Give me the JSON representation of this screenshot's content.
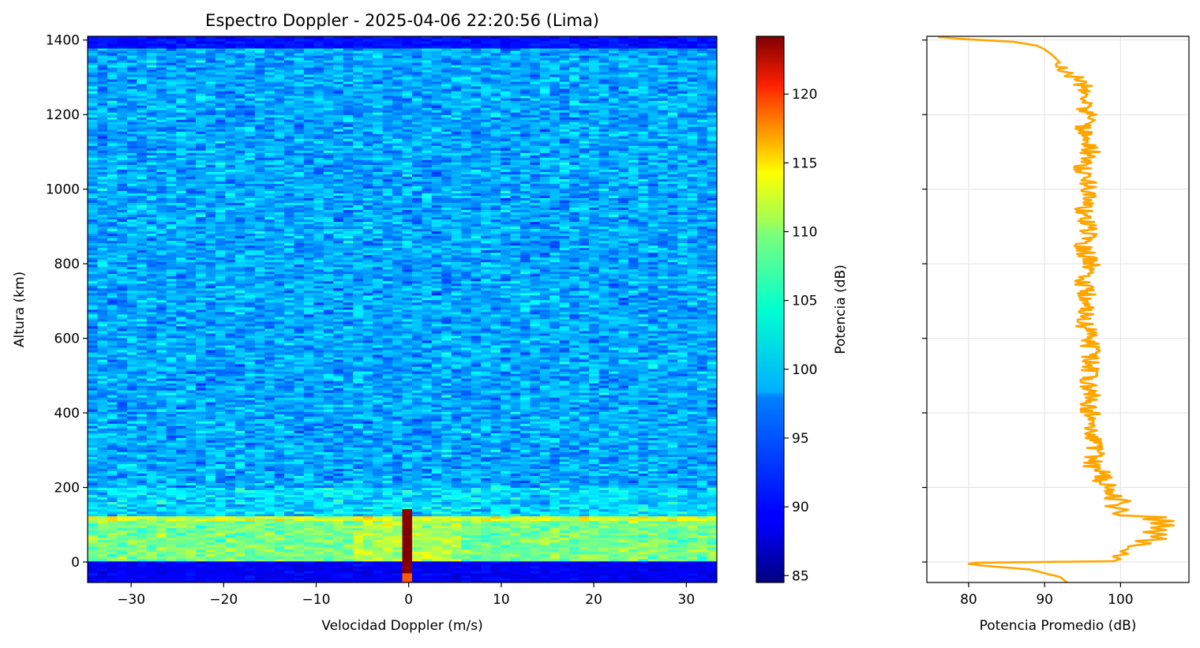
{
  "chart_data": [
    {
      "type": "heatmap",
      "title": "Espectro Doppler - 2025-04-06 22:20:56 (Lima)",
      "xlabel": "Velocidad Doppler (m/s)",
      "ylabel": "Altura (km)",
      "xlim": [
        -34.7,
        33.3
      ],
      "ylim": [
        -55,
        1410
      ],
      "xticks": [
        -30,
        -20,
        -10,
        0,
        10,
        20,
        30
      ],
      "yticks": [
        0,
        200,
        400,
        600,
        800,
        1000,
        1200,
        1400
      ],
      "colormap": "jet",
      "colorbar": {
        "label": "Potencia (dB)",
        "range": [
          84.5,
          124.2
        ],
        "ticks": [
          85,
          90,
          95,
          100,
          105,
          110,
          115,
          120
        ]
      },
      "features": {
        "background_level_db": 96,
        "enhanced_band": {
          "height_range_km": [
            0,
            125
          ],
          "level_db": 104
        },
        "lower_band_top": {
          "height_range_km": [
            110,
            125
          ],
          "level_db": 108
        },
        "weak_bottom_layer": {
          "height_range_km": [
            -55,
            0
          ],
          "level_db": 89
        },
        "weak_top_rows": {
          "height_range_km": [
            1380,
            1410
          ],
          "level_db": 90
        },
        "zero_velocity_spike": {
          "velocity_ms": 0,
          "height_range_km": [
            -55,
            145
          ],
          "level_db": 124
        }
      }
    },
    {
      "type": "line",
      "xlabel": "Potencia Promedio (dB)",
      "ylabel": "",
      "xlim": [
        74.5,
        109
      ],
      "ylim": [
        -55,
        1410
      ],
      "xticks": [
        80,
        90,
        100
      ],
      "yticks": [
        0,
        200,
        400,
        600,
        800,
        1000,
        1200,
        1400
      ],
      "grid": true,
      "color": "#ffa500",
      "series": [
        {
          "heights": [
            -55,
            -40,
            -20,
            -10,
            -5,
            -2,
            2,
            8,
            15,
            22,
            28,
            35,
            42,
            50,
            56,
            62,
            68,
            74,
            80,
            86,
            92,
            98,
            104,
            110,
            115,
            120,
            125,
            130,
            140,
            150,
            160,
            170,
            180,
            190,
            200,
            215,
            235,
            260,
            300,
            350,
            400,
            450,
            500,
            550,
            600,
            650,
            700,
            750,
            800,
            850,
            900,
            950,
            1000,
            1050,
            1100,
            1150,
            1200,
            1230,
            1260,
            1280,
            1300,
            1320,
            1340,
            1360,
            1375,
            1385,
            1395,
            1402,
            1408
          ],
          "power": [
            93,
            92,
            88,
            82,
            80,
            81,
            99,
            100,
            99,
            101,
            100,
            101,
            101,
            104,
            102,
            106,
            104,
            106,
            103,
            106,
            104,
            107,
            104,
            107,
            103,
            106,
            100,
            99,
            101,
            98,
            101,
            99,
            100,
            98,
            99,
            97,
            98,
            96,
            97,
            96,
            96,
            96,
            96,
            96,
            96,
            95,
            96,
            95,
            96,
            95,
            96,
            95,
            96,
            95,
            96,
            95,
            96,
            95,
            96,
            95,
            94,
            93,
            92,
            91,
            90,
            89,
            86,
            80,
            76
          ]
        }
      ]
    }
  ]
}
